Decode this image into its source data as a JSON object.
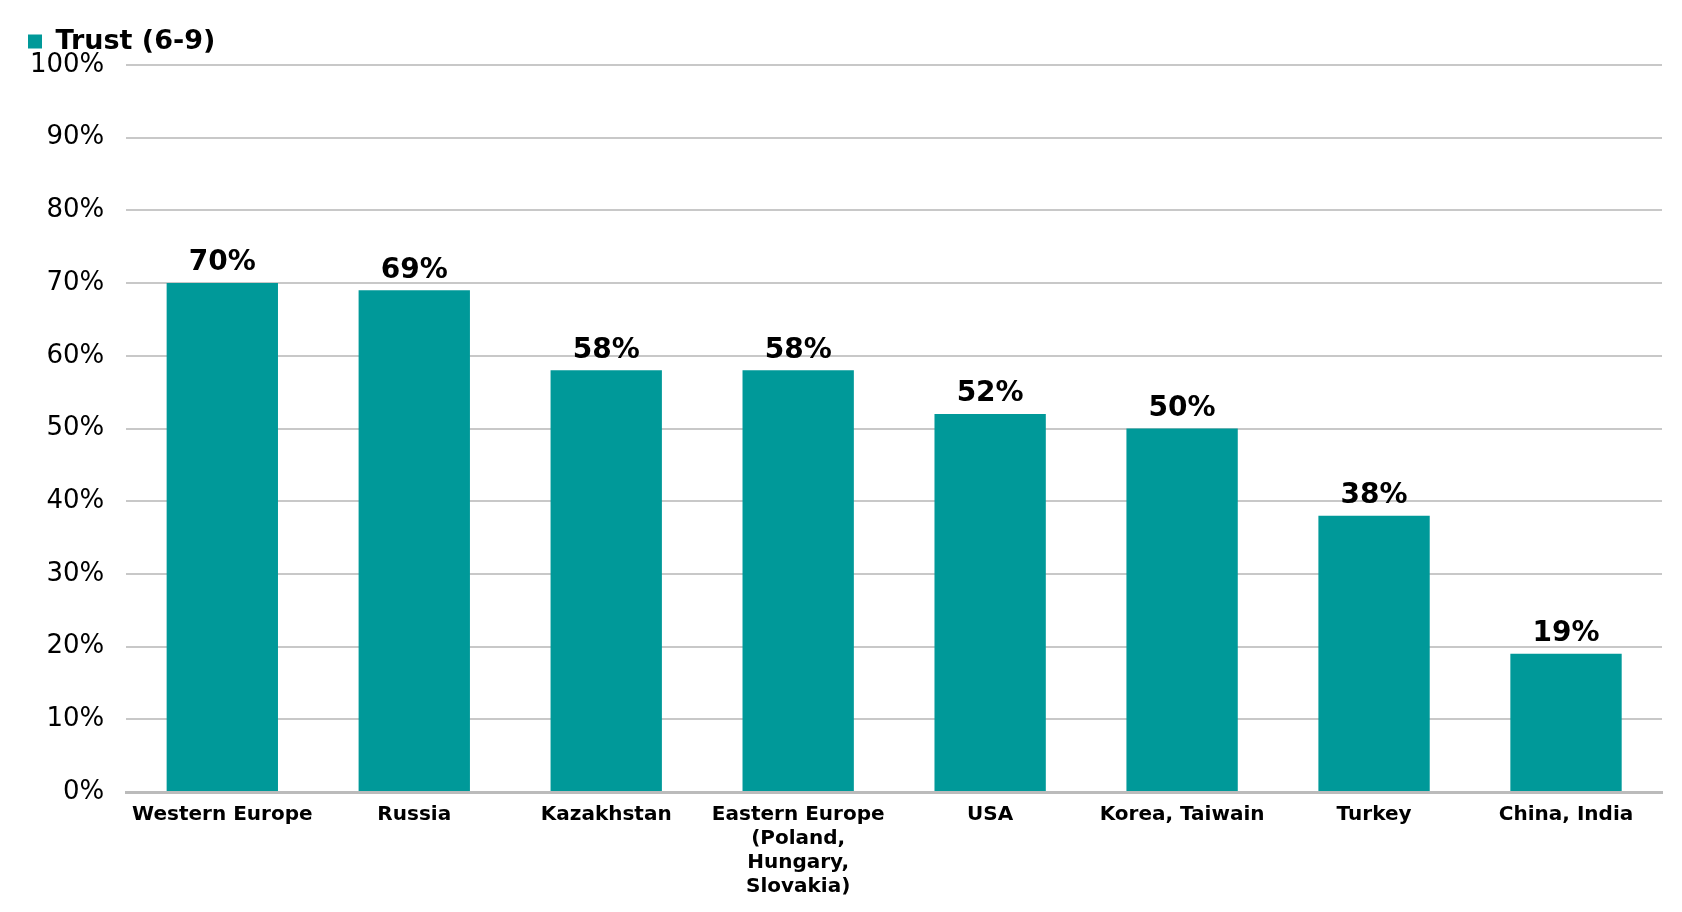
{
  "chart_data": {
    "type": "bar",
    "categories": [
      "Western Europe",
      "Russia",
      "Kazakhstan",
      "Eastern Europe (Poland, Hungary, Slovakia)",
      "USA",
      "Korea, Taiwain",
      "Turkey",
      "China, India"
    ],
    "series": [
      {
        "name": "Trust (6-9)",
        "color": "#009999",
        "values": [
          70,
          69,
          58,
          58,
          52,
          50,
          38,
          19
        ],
        "value_labels": [
          "70%",
          "69%",
          "58%",
          "58%",
          "52%",
          "50%",
          "38%",
          "19%"
        ]
      }
    ],
    "ylim": [
      0,
      100
    ],
    "yticks": [
      {
        "value": 0,
        "label": "0%"
      },
      {
        "value": 10,
        "label": "10%"
      },
      {
        "value": 20,
        "label": "20%"
      },
      {
        "value": 30,
        "label": "30%"
      },
      {
        "value": 40,
        "label": "40%"
      },
      {
        "value": 50,
        "label": "50%"
      },
      {
        "value": 60,
        "label": "60%"
      },
      {
        "value": 70,
        "label": "70%"
      },
      {
        "value": 80,
        "label": "80%"
      },
      {
        "value": 90,
        "label": "90%"
      },
      {
        "value": 100,
        "label": "100%"
      }
    ],
    "grid": "y",
    "legend": "top left"
  }
}
